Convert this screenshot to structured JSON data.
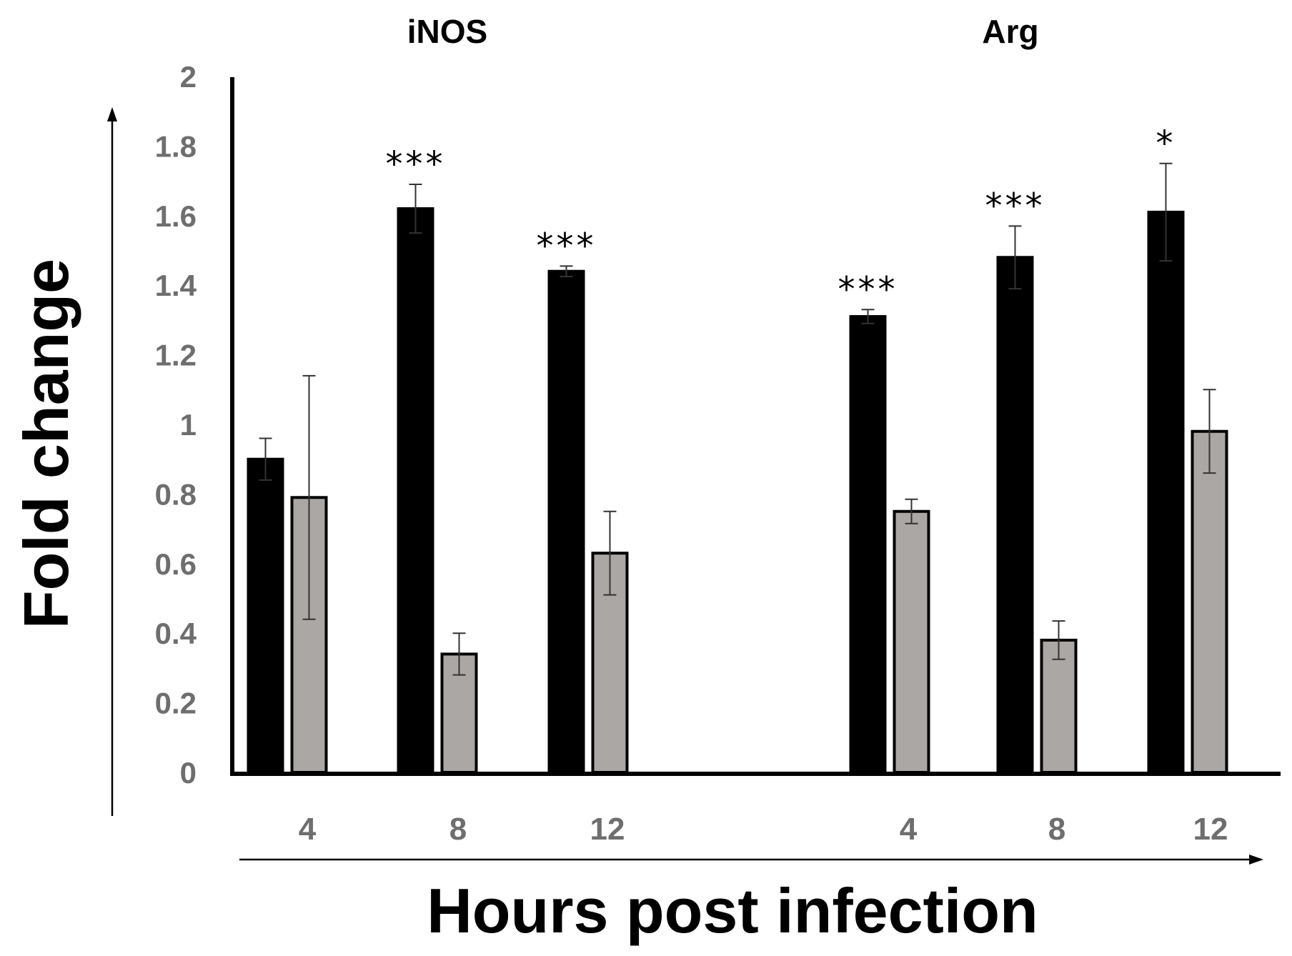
{
  "chart_data": {
    "type": "bar",
    "xlabel": "Hours post infection",
    "ylabel": "Fold change",
    "ylim": [
      0,
      2
    ],
    "yticks": [
      "0",
      "0.2",
      "0.4",
      "0.6",
      "0.8",
      "1",
      "1.2",
      "1.4",
      "1.6",
      "1.8",
      "2"
    ],
    "grid": false,
    "colors": {
      "series1": "#000000",
      "series2": "#aaa7a5",
      "text": "#6e6e6e"
    },
    "groups": [
      {
        "title": "iNOS",
        "categories": [
          "4",
          "8",
          "12"
        ],
        "series": [
          {
            "values": [
              0.9,
              1.62,
              1.44
            ],
            "errors": [
              0.06,
              0.07,
              0.015
            ]
          },
          {
            "values": [
              0.79,
              0.34,
              0.63
            ],
            "errors": [
              0.35,
              0.06,
              0.12
            ]
          }
        ],
        "annotations": [
          "",
          "***",
          "***"
        ]
      },
      {
        "title": "Arg",
        "categories": [
          "4",
          "8",
          "12"
        ],
        "series": [
          {
            "values": [
              1.31,
              1.48,
              1.61
            ],
            "errors": [
              0.02,
              0.09,
              0.14
            ]
          },
          {
            "values": [
              0.75,
              0.38,
              0.98
            ],
            "errors": [
              0.035,
              0.055,
              0.12
            ]
          }
        ],
        "annotations": [
          "***",
          "***",
          "*"
        ]
      }
    ]
  }
}
